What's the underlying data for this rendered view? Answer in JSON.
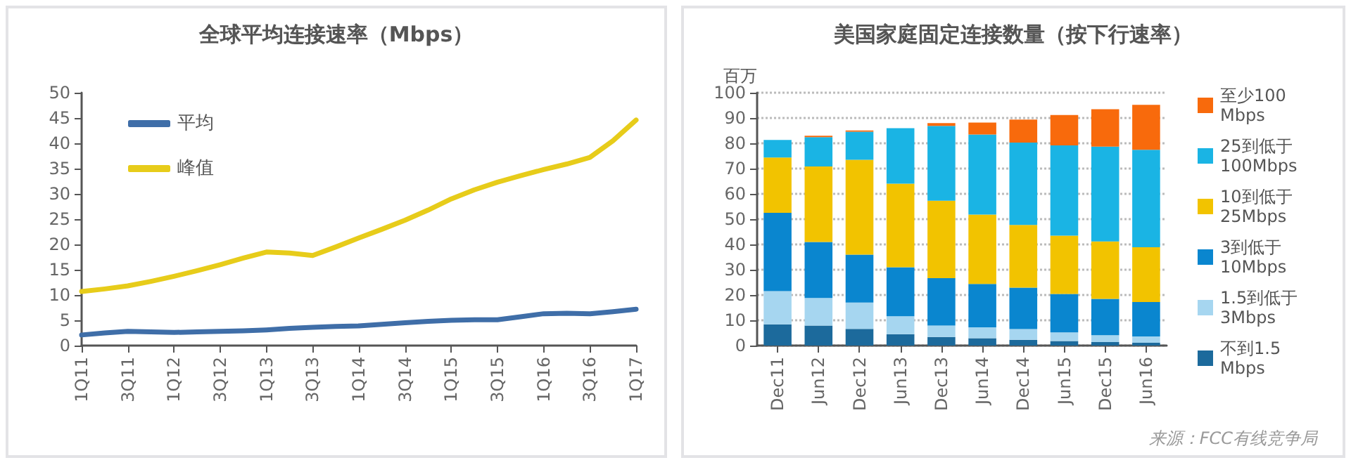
{
  "chart_data": [
    {
      "type": "line",
      "title": "全球平均连接速率（Mbps）",
      "categories": [
        "1Q11",
        null,
        "3Q11",
        null,
        "1Q12",
        null,
        "3Q12",
        null,
        "1Q13",
        null,
        "3Q13",
        null,
        "1Q14",
        null,
        "3Q14",
        null,
        "1Q15",
        null,
        "3Q15",
        null,
        "1Q16",
        null,
        "3Q16",
        null,
        "1Q17"
      ],
      "series": [
        {
          "name": "平均",
          "color": "#3f6ea8",
          "values": [
            2.1,
            2.5,
            2.8,
            2.7,
            2.6,
            2.7,
            2.8,
            2.9,
            3.1,
            3.4,
            3.6,
            3.8,
            3.9,
            4.2,
            4.5,
            4.8,
            5.0,
            5.1,
            5.1,
            5.7,
            6.3,
            6.4,
            6.3,
            6.7,
            7.2
          ]
        },
        {
          "name": "峰值",
          "color": "#e7cc1a",
          "values": [
            10.7,
            11.2,
            11.8,
            12.7,
            13.7,
            14.8,
            16,
            17.3,
            18.5,
            18.3,
            17.8,
            19.5,
            21.3,
            23,
            24.8,
            26.8,
            29,
            30.8,
            32.3,
            33.6,
            34.8,
            35.9,
            37.2,
            40.5,
            44.6
          ]
        }
      ],
      "ylim": [
        0,
        50
      ],
      "yticks": [
        0,
        5,
        10,
        15,
        20,
        25,
        30,
        35,
        40,
        45,
        50
      ],
      "legend": "top left",
      "marker": "none",
      "line_style": "solid"
    },
    {
      "type": "bar",
      "stacked": true,
      "title": "美国家庭固定连接数量（按下行速率）",
      "ylabel": "百万",
      "categories": [
        "Dec11",
        "Jun12",
        "Dec12",
        "Jun13",
        "Dec13",
        "Jun14",
        "Dec14",
        "Jun15",
        "Dec15",
        "Jun16"
      ],
      "series": [
        {
          "name": "不到1.5 Mbps",
          "color": "#1c6a9c",
          "values": [
            8.4,
            7.9,
            6.6,
            4.5,
            3.4,
            2.9,
            2.3,
            1.8,
            1.4,
            1.1
          ]
        },
        {
          "name": "1.5到低于3Mbps",
          "color": "#a6d6f0",
          "values": [
            13.1,
            10.9,
            10.4,
            7.1,
            4.5,
            4.3,
            4.2,
            3.4,
            2.7,
            2.5
          ]
        },
        {
          "name": "3到低于10Mbps",
          "color": "#0a86cf",
          "values": [
            31,
            22.2,
            19,
            19.4,
            18.8,
            17.2,
            16.4,
            15.2,
            14.4,
            13.6
          ]
        },
        {
          "name": "10到低于25Mbps",
          "color": "#f2c300",
          "values": [
            21.9,
            29.8,
            37.5,
            33,
            30.6,
            27.4,
            24.8,
            23.1,
            22.7,
            21.7
          ]
        },
        {
          "name": "25到低于100Mbps",
          "color": "#1ab4e4",
          "values": [
            6.9,
            11.6,
            11.1,
            22,
            29.6,
            31.7,
            32.6,
            35.7,
            37.5,
            38.5
          ]
        },
        {
          "name": "至少100 Mbps",
          "color": "#f86a0c",
          "values": [
            0,
            0.6,
            0.5,
            null,
            1.1,
            4.7,
            9.1,
            12,
            14.8,
            17.8
          ]
        }
      ],
      "ylim": [
        0,
        100
      ],
      "yticks": [
        0,
        10,
        20,
        30,
        40,
        50,
        60,
        70,
        80,
        90,
        100
      ],
      "grid": "y",
      "legend": "right",
      "annotations": [
        "来源：FCC有线竞争局"
      ]
    }
  ]
}
